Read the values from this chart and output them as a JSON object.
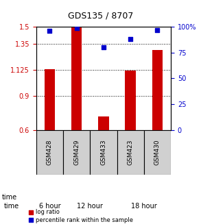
{
  "title": "GDS135 / 8707",
  "samples": [
    "GSM428",
    "GSM429",
    "GSM433",
    "GSM423",
    "GSM430"
  ],
  "log_ratios": [
    1.13,
    1.5,
    0.72,
    1.12,
    1.3
  ],
  "percentile_ranks": [
    96,
    99,
    80,
    88,
    97
  ],
  "bar_color": "#cc0000",
  "dot_color": "#0000cc",
  "ylim_left": [
    0.6,
    1.5
  ],
  "ylim_right": [
    0,
    100
  ],
  "yticks_left": [
    0.6,
    0.9,
    1.125,
    1.35,
    1.5
  ],
  "ytick_labels_left": [
    "0.6",
    "0.9",
    "1.125",
    "1.35",
    "1.5"
  ],
  "yticks_right": [
    0,
    25,
    50,
    75,
    100
  ],
  "ytick_labels_right": [
    "0",
    "25",
    "50",
    "75",
    "100%"
  ],
  "groups": [
    {
      "label": "6 hour",
      "samples": [
        "GSM428"
      ],
      "color": "#ccffcc"
    },
    {
      "label": "12 hour",
      "samples": [
        "GSM429",
        "GSM433"
      ],
      "color": "#66cc66"
    },
    {
      "label": "18 hour",
      "samples": [
        "GSM423",
        "GSM430"
      ],
      "color": "#44cc44"
    }
  ],
  "time_label": "time",
  "legend_red_label": "log ratio",
  "legend_blue_label": "percentile rank within the sample",
  "bar_width": 0.4,
  "base_value": 0.6
}
